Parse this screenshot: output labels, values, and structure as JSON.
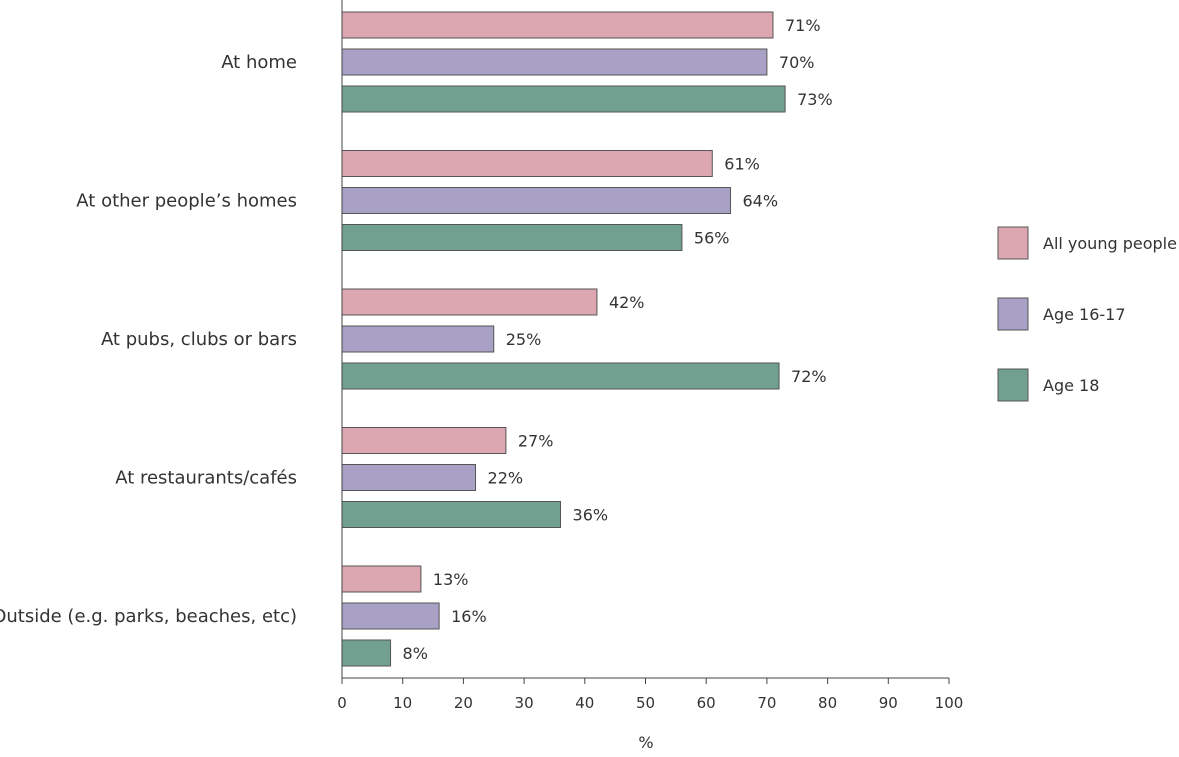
{
  "chart_data": {
    "type": "bar",
    "orientation": "horizontal",
    "title": "",
    "xlabel": "%",
    "ylabel": "",
    "xlim": [
      0,
      100
    ],
    "xticks": [
      0,
      10,
      20,
      30,
      40,
      50,
      60,
      70,
      80,
      90,
      100
    ],
    "categories": [
      "At home",
      "At other people’s homes",
      "At pubs, clubs or bars",
      "At restaurants/cafés",
      "Outside (e.g. parks, beaches, etc)"
    ],
    "series": [
      {
        "name": "All young people",
        "color": "#dca7b0",
        "values": [
          71,
          61,
          42,
          27,
          13
        ]
      },
      {
        "name": "Age 16-17",
        "color": "#a9a0c5",
        "values": [
          70,
          64,
          25,
          22,
          16
        ]
      },
      {
        "name": "Age 18",
        "color": "#72a090",
        "values": [
          73,
          56,
          72,
          36,
          8
        ]
      }
    ],
    "value_suffix": "%",
    "legend_position": "right",
    "grid": false
  }
}
